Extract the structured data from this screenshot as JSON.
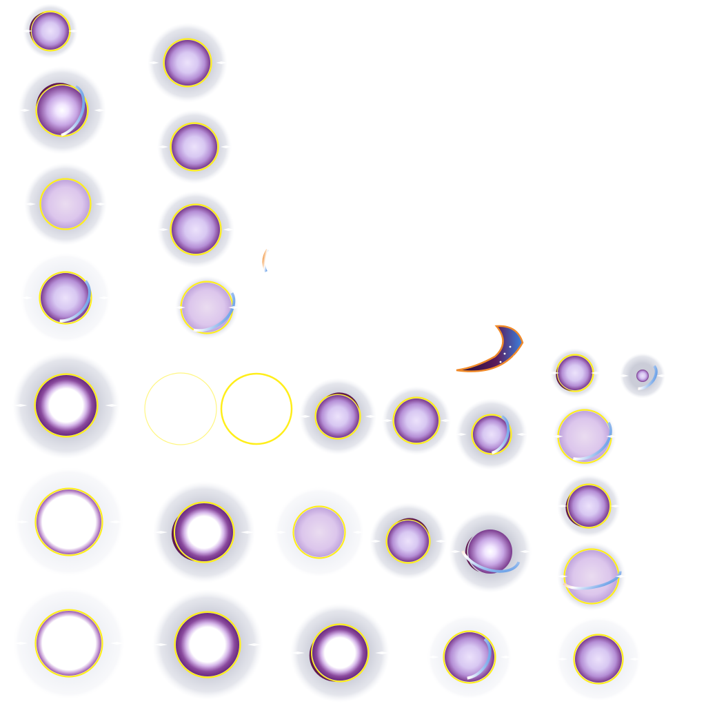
{
  "sheet": {
    "kind": "sprite-sheet",
    "background": "#ffffff",
    "colors": {
      "orb_core": "#d8c8f2",
      "orb_mid": "#b89ae0",
      "orb_rim": "#7a3a8c",
      "rim_dark": "#4a1450",
      "ring_yellow": "#ffee1a",
      "halo_grey": "#c8cad6",
      "halo_pale": "#eef0f5",
      "arc_orange": "#f08a2a",
      "arc_blue": "#3b82e0",
      "arc_dark": "#5a0f4a",
      "sparkle": "#ffffff",
      "night_sky": "#1c0e3a"
    },
    "sprite_count": 36,
    "sprite_types": [
      "orb",
      "orb-with-orbit",
      "orb-with-crescent",
      "hollow-ring",
      "yellow-ring",
      "crescent-moon",
      "small-arc"
    ]
  }
}
